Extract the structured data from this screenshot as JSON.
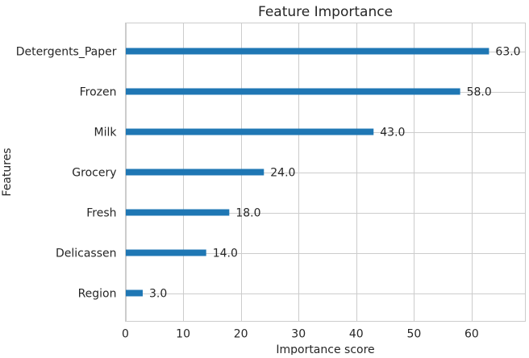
{
  "chart_data": {
    "type": "bar",
    "orientation": "horizontal",
    "title": "Feature Importance",
    "xlabel": "Importance score",
    "ylabel": "Features",
    "categories": [
      "Detergents_Paper",
      "Frozen",
      "Milk",
      "Grocery",
      "Fresh",
      "Delicassen",
      "Region"
    ],
    "values": [
      63.0,
      58.0,
      43.0,
      24.0,
      18.0,
      14.0,
      3.0
    ],
    "value_labels": [
      "63.0",
      "58.0",
      "43.0",
      "24.0",
      "18.0",
      "14.0",
      "3.0"
    ],
    "xlim": [
      0,
      69.3
    ],
    "xticks": [
      0,
      10,
      20,
      30,
      40,
      50,
      60
    ],
    "grid": true,
    "bar_color": "#1f77b4",
    "grid_color": "#cccccc"
  }
}
